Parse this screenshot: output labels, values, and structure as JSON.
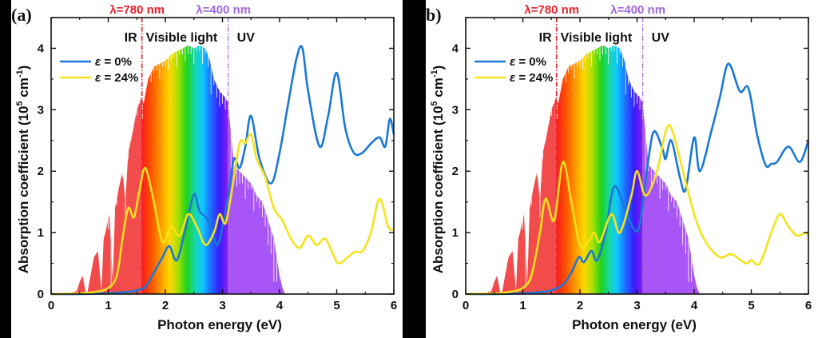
{
  "chart_data": [
    {
      "type": "line",
      "panel_label": "(a)",
      "xlabel": "Photon energy (eV)",
      "ylabel": "Absorption coefficient (10^5 cm^-1)",
      "ylabel_parts": {
        "main": "Absorption coefficient (10",
        "sup1": "5",
        "mid": " cm",
        "sup2": "-1",
        "end": ")"
      },
      "xlim": [
        0,
        6
      ],
      "ylim": [
        0,
        4.5
      ],
      "xticks": [
        0,
        1,
        2,
        3,
        4,
        5,
        6
      ],
      "yticks": [
        0,
        1,
        2,
        3,
        4
      ],
      "legend_position": "top-left",
      "annotations": {
        "ir_label": "IR",
        "visible_label": "Visible light",
        "uv_label": "UV",
        "line_780": {
          "label": "λ=780 nm",
          "x": 1.59,
          "color": "#e8202a"
        },
        "line_400": {
          "label": "λ=400 nm",
          "x": 3.1,
          "color": "#a066e0"
        }
      },
      "solar_spectrum": {
        "x": [
          0.3,
          0.45,
          0.5,
          0.55,
          0.6,
          0.63,
          0.75,
          0.82,
          0.88,
          0.92,
          0.95,
          1.02,
          1.08,
          1.12,
          1.18,
          1.25,
          1.3,
          1.35,
          1.42,
          1.5,
          1.58,
          1.62,
          1.7,
          1.8,
          1.9,
          2.0,
          2.1,
          2.2,
          2.3,
          2.4,
          2.5,
          2.6,
          2.7,
          2.78,
          2.85,
          2.95,
          3.05,
          3.1,
          3.2,
          3.3,
          3.4,
          3.5,
          3.6,
          3.7,
          3.8,
          3.9,
          4.0,
          4.05,
          4.1
        ],
        "y": [
          0,
          0.05,
          0.2,
          0.3,
          0.05,
          0,
          0.6,
          0.7,
          0.05,
          0.9,
          1.0,
          1.3,
          0.2,
          1.4,
          1.7,
          2.0,
          1.5,
          2.3,
          2.6,
          3.0,
          3.2,
          3.1,
          3.5,
          3.7,
          3.75,
          3.8,
          3.9,
          3.95,
          4.0,
          4.05,
          4.0,
          4.05,
          4.0,
          3.8,
          3.5,
          3.3,
          3.2,
          3.1,
          2.1,
          2.0,
          1.9,
          1.8,
          1.6,
          1.5,
          1.2,
          0.9,
          0.3,
          0.1,
          0
        ]
      },
      "series": [
        {
          "name": "ε = 0%",
          "color": "#1a78d6",
          "x": [
            0,
            0.5,
            1.0,
            1.3,
            1.5,
            1.65,
            1.8,
            1.95,
            2.07,
            2.2,
            2.35,
            2.5,
            2.6,
            2.75,
            2.9,
            3.0,
            3.1,
            3.2,
            3.3,
            3.4,
            3.5,
            3.65,
            3.85,
            4.0,
            4.15,
            4.3,
            4.4,
            4.5,
            4.7,
            4.85,
            5.0,
            5.15,
            5.3,
            5.45,
            5.6,
            5.75,
            5.85,
            5.93,
            6.0
          ],
          "y": [
            0,
            0,
            0.01,
            0.03,
            0.06,
            0.12,
            0.35,
            0.6,
            0.78,
            0.55,
            1.05,
            1.62,
            1.35,
            1.2,
            0.8,
            1.1,
            1.6,
            2.2,
            2.05,
            2.4,
            2.9,
            2.2,
            1.8,
            2.3,
            3.1,
            3.85,
            4.0,
            3.3,
            2.4,
            2.9,
            3.6,
            2.7,
            2.3,
            2.3,
            2.45,
            2.55,
            2.4,
            2.85,
            2.6
          ]
        },
        {
          "name": "ε = 24%",
          "color": "#f5e21a",
          "x": [
            0,
            0.5,
            0.8,
            1.0,
            1.15,
            1.25,
            1.35,
            1.45,
            1.55,
            1.65,
            1.8,
            1.95,
            2.1,
            2.25,
            2.4,
            2.55,
            2.7,
            2.85,
            2.95,
            3.05,
            3.15,
            3.3,
            3.4,
            3.5,
            3.6,
            3.75,
            3.9,
            4.05,
            4.2,
            4.35,
            4.5,
            4.65,
            4.8,
            4.95,
            5.05,
            5.3,
            5.45,
            5.6,
            5.75,
            5.9,
            6.0
          ],
          "y": [
            0,
            0.01,
            0.04,
            0.1,
            0.3,
            0.9,
            1.4,
            1.25,
            1.7,
            2.05,
            1.5,
            0.85,
            1.1,
            0.95,
            1.3,
            1.1,
            0.8,
            1.0,
            1.3,
            1.15,
            1.6,
            2.45,
            2.45,
            2.6,
            2.2,
            1.9,
            1.4,
            1.2,
            0.9,
            0.75,
            0.95,
            0.8,
            0.9,
            0.62,
            0.5,
            0.68,
            0.7,
            1.0,
            1.55,
            1.1,
            1.05
          ]
        }
      ]
    },
    {
      "type": "line",
      "panel_label": "b)",
      "xlabel": "Photon energy (eV)",
      "ylabel": "Absorption coefficient (10^5 cm^-1)",
      "ylabel_parts": {
        "main": "Absorption coefficient (10",
        "sup1": "5",
        "mid": " cm",
        "sup2": "-1",
        "end": ")"
      },
      "xlim": [
        0,
        6
      ],
      "ylim": [
        0,
        4.5
      ],
      "xticks": [
        0,
        1,
        2,
        3,
        4,
        5,
        6
      ],
      "yticks": [
        0,
        1,
        2,
        3,
        4
      ],
      "legend_position": "top-left",
      "annotations": {
        "ir_label": "IR",
        "visible_label": "Visible light",
        "uv_label": "UV",
        "line_780": {
          "label": "λ=780 nm",
          "x": 1.59,
          "color": "#e8202a"
        },
        "line_400": {
          "label": "λ=400 nm",
          "x": 3.1,
          "color": "#a066e0"
        }
      },
      "solar_spectrum": {
        "x": [
          0.3,
          0.45,
          0.5,
          0.55,
          0.6,
          0.63,
          0.75,
          0.82,
          0.88,
          0.92,
          0.95,
          1.02,
          1.08,
          1.12,
          1.18,
          1.25,
          1.3,
          1.35,
          1.42,
          1.5,
          1.58,
          1.62,
          1.7,
          1.8,
          1.9,
          2.0,
          2.1,
          2.2,
          2.3,
          2.4,
          2.5,
          2.6,
          2.7,
          2.78,
          2.85,
          2.95,
          3.05,
          3.1,
          3.2,
          3.3,
          3.4,
          3.5,
          3.6,
          3.7,
          3.8,
          3.9,
          4.0,
          4.05,
          4.1
        ],
        "y": [
          0,
          0.05,
          0.2,
          0.3,
          0.05,
          0,
          0.6,
          0.7,
          0.05,
          0.9,
          1.0,
          1.3,
          0.2,
          1.4,
          1.7,
          2.0,
          1.5,
          2.3,
          2.6,
          3.0,
          3.2,
          3.1,
          3.5,
          3.7,
          3.75,
          3.8,
          3.9,
          3.95,
          4.0,
          4.05,
          4.0,
          4.05,
          4.0,
          3.8,
          3.5,
          3.3,
          3.2,
          3.1,
          2.1,
          2.0,
          1.9,
          1.8,
          1.6,
          1.5,
          1.2,
          0.9,
          0.3,
          0.1,
          0
        ]
      },
      "series": [
        {
          "name": "ε = 0%",
          "color": "#1a78d6",
          "x": [
            0,
            0.5,
            1.0,
            1.3,
            1.5,
            1.7,
            1.85,
            1.98,
            2.07,
            2.2,
            2.3,
            2.45,
            2.6,
            2.8,
            2.95,
            3.05,
            3.2,
            3.3,
            3.45,
            3.5,
            3.6,
            3.75,
            3.85,
            4.0,
            4.1,
            4.3,
            4.45,
            4.6,
            4.8,
            4.95,
            5.1,
            5.25,
            5.35,
            5.45,
            5.65,
            5.85,
            6.0
          ],
          "y": [
            0,
            0,
            0.01,
            0.03,
            0.06,
            0.15,
            0.35,
            0.6,
            0.52,
            0.7,
            0.55,
            1.0,
            1.75,
            1.35,
            1.05,
            1.15,
            2.2,
            2.65,
            2.35,
            2.2,
            2.5,
            1.9,
            1.7,
            2.55,
            2.0,
            2.65,
            3.2,
            3.75,
            3.3,
            3.35,
            2.6,
            2.1,
            2.12,
            2.15,
            2.4,
            2.15,
            2.5
          ]
        },
        {
          "name": "ε = 24%",
          "color": "#f5e21a",
          "x": [
            0,
            0.5,
            0.8,
            1.0,
            1.15,
            1.3,
            1.4,
            1.55,
            1.7,
            1.85,
            2.0,
            2.15,
            2.25,
            2.35,
            2.55,
            2.7,
            2.9,
            3.0,
            3.15,
            3.35,
            3.5,
            3.6,
            3.75,
            4.0,
            4.2,
            4.45,
            4.65,
            4.9,
            5.0,
            5.15,
            5.35,
            5.5,
            5.65,
            5.8,
            5.95,
            6.0
          ],
          "y": [
            0,
            0.01,
            0.04,
            0.1,
            0.3,
            1.0,
            1.55,
            1.2,
            2.15,
            1.5,
            0.8,
            0.85,
            1.0,
            0.85,
            1.3,
            1.0,
            1.6,
            2.0,
            1.6,
            2.0,
            2.65,
            2.7,
            2.2,
            1.3,
            0.85,
            0.6,
            0.65,
            0.5,
            0.55,
            0.5,
            1.0,
            1.3,
            1.1,
            0.95,
            1.0,
            0.95
          ]
        }
      ]
    }
  ]
}
